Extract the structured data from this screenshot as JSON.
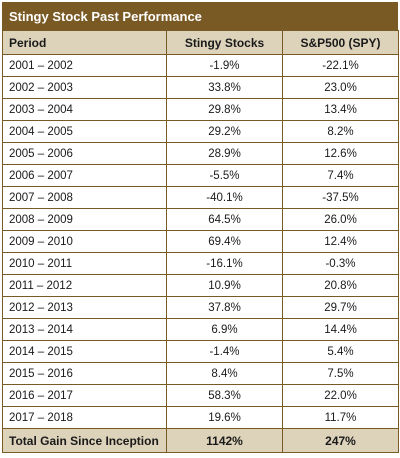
{
  "title": "Stingy Stock Past Performance",
  "headers": [
    "Period",
    "Stingy Stocks",
    "S&P500 (SPY)"
  ],
  "rows": [
    {
      "period": "2001 – 2002",
      "stingy": "-1.9%",
      "sp500": "-22.1%"
    },
    {
      "period": "2002 – 2003",
      "stingy": "33.8%",
      "sp500": "23.0%"
    },
    {
      "period": "2003 – 2004",
      "stingy": "29.8%",
      "sp500": "13.4%"
    },
    {
      "period": "2004 – 2005",
      "stingy": "29.2%",
      "sp500": "8.2%"
    },
    {
      "period": "2005 – 2006",
      "stingy": "28.9%",
      "sp500": "12.6%"
    },
    {
      "period": "2006 – 2007",
      "stingy": "-5.5%",
      "sp500": "7.4%"
    },
    {
      "period": "2007 – 2008",
      "stingy": "-40.1%",
      "sp500": "-37.5%"
    },
    {
      "period": "2008 – 2009",
      "stingy": "64.5%",
      "sp500": "26.0%"
    },
    {
      "period": "2009 – 2010",
      "stingy": "69.4%",
      "sp500": "12.4%"
    },
    {
      "period": "2010 – 2011",
      "stingy": "-16.1%",
      "sp500": "-0.3%"
    },
    {
      "period": "2011 – 2012",
      "stingy": "10.9%",
      "sp500": "20.8%"
    },
    {
      "period": "2012 – 2013",
      "stingy": "37.8%",
      "sp500": "29.7%"
    },
    {
      "period": "2013 – 2014",
      "stingy": "6.9%",
      "sp500": "14.4%"
    },
    {
      "period": "2014 – 2015",
      "stingy": "-1.4%",
      "sp500": "5.4%"
    },
    {
      "period": "2015 – 2016",
      "stingy": "8.4%",
      "sp500": "7.5%"
    },
    {
      "period": "2016 – 2017",
      "stingy": "58.3%",
      "sp500": "22.0%"
    },
    {
      "period": "2017 – 2018",
      "stingy": "19.6%",
      "sp500": "11.7%"
    }
  ],
  "total": {
    "label": "Total Gain Since Inception",
    "stingy": "1142%",
    "sp500": "247%"
  },
  "colors": {
    "title_bg": "#7a5a24",
    "header_bg": "#ddd3ba",
    "border": "#7a5a24"
  }
}
